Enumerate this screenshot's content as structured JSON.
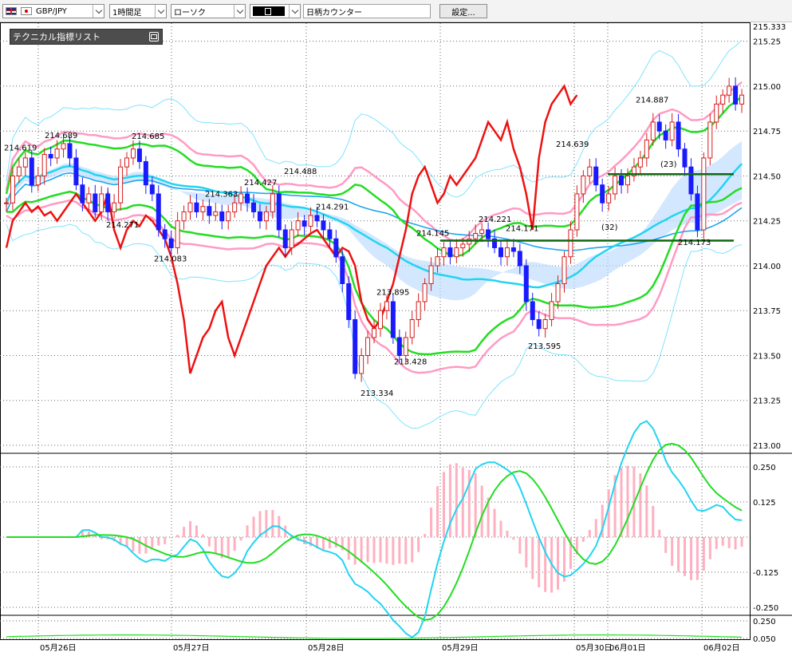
{
  "toolbar": {
    "symbol": "GBP/JPY",
    "timeframe": "1時間足",
    "chart_style": "ローソク",
    "color_value": "",
    "counter_label": "日柄カウンター",
    "settings_label": "設定..."
  },
  "indicator_panel": {
    "title": "テクニカル指標リスト"
  },
  "colors": {
    "candle_up": "#d61c1c",
    "candle_down": "#1a1aff",
    "bb_outer": "#7fe3ff",
    "bb_inner": "#ff9ac4",
    "ma_green": "#22dd22",
    "ma_cyan": "#22d4f0",
    "ma_long": "#1fa6ee",
    "lag_red": "#ee1111",
    "cloud": "#bcdcff",
    "cloud_pink": "#ffc6d8",
    "macd_hist": "#ffb0c0",
    "hline": "#116611"
  },
  "chart_data": [
    {
      "type": "candlestick",
      "symbol": "GBP/JPY",
      "timeframe": "1時間足",
      "y_ticks": [
        "215.333",
        "215.25",
        "215.00",
        "214.75",
        "214.50",
        "214.25",
        "214.00",
        "213.75",
        "213.50",
        "213.25",
        "213.00"
      ],
      "ylim": [
        213.0,
        215.333
      ],
      "x_dates": [
        "05月26日",
        "05月27日",
        "05月28日",
        "05月29日",
        "05月30日",
        "06月01日",
        "06月02日"
      ],
      "price_annotations": [
        {
          "text": "214.619",
          "value": 214.619
        },
        {
          "text": "214.689",
          "value": 214.689
        },
        {
          "text": "214.685",
          "value": 214.685
        },
        {
          "text": "214.271",
          "value": 214.271
        },
        {
          "text": "214.083",
          "value": 214.083
        },
        {
          "text": "214.363",
          "value": 214.363
        },
        {
          "text": "214.427",
          "value": 214.427
        },
        {
          "text": "214.488",
          "value": 214.488
        },
        {
          "text": "214.291",
          "value": 214.291
        },
        {
          "text": "213.334",
          "value": 213.334
        },
        {
          "text": "213.895",
          "value": 213.895
        },
        {
          "text": "213.428",
          "value": 213.428
        },
        {
          "text": "214.145",
          "value": 214.145
        },
        {
          "text": "214.221",
          "value": 214.221
        },
        {
          "text": "214.171",
          "value": 214.171
        },
        {
          "text": "213.595",
          "value": 213.595
        },
        {
          "text": "214.639",
          "value": 214.639
        },
        {
          "text": "214.887",
          "value": 214.887
        },
        {
          "text": "214.173",
          "value": 214.173
        }
      ],
      "counter_labels": [
        "(23)",
        "(32)"
      ],
      "horizontal_lines": [
        {
          "value": 214.51
        },
        {
          "value": 214.14
        }
      ],
      "close_series": [
        214.35,
        214.5,
        214.55,
        214.6,
        214.45,
        214.5,
        214.62,
        214.6,
        214.65,
        214.68,
        214.6,
        214.45,
        214.35,
        214.4,
        214.3,
        214.4,
        214.3,
        214.35,
        214.55,
        214.6,
        214.65,
        214.58,
        214.45,
        214.4,
        214.2,
        214.15,
        214.1,
        214.25,
        214.3,
        214.35,
        214.3,
        214.33,
        214.28,
        214.3,
        214.25,
        214.3,
        214.35,
        214.4,
        214.35,
        214.3,
        214.25,
        214.3,
        214.4,
        214.2,
        214.1,
        214.2,
        214.25,
        214.22,
        214.28,
        214.25,
        214.2,
        214.15,
        214.05,
        213.9,
        213.7,
        213.4,
        213.5,
        213.6,
        213.65,
        213.75,
        213.8,
        213.6,
        213.5,
        213.6,
        213.7,
        213.8,
        213.9,
        214.0,
        214.05,
        214.1,
        214.05,
        214.1,
        214.12,
        214.15,
        214.18,
        214.2,
        214.15,
        214.1,
        214.05,
        214.1,
        214.08,
        214.0,
        213.8,
        213.7,
        213.65,
        213.7,
        213.8,
        213.9,
        214.05,
        214.2,
        214.4,
        214.5,
        214.55,
        214.45,
        214.35,
        214.4,
        214.5,
        214.45,
        214.5,
        214.55,
        214.6,
        214.7,
        214.8,
        214.75,
        214.7,
        214.8,
        214.65,
        214.55,
        214.4,
        214.2,
        214.6,
        214.8,
        214.9,
        214.95,
        215.0,
        214.9,
        214.95
      ]
    },
    {
      "type": "line",
      "title": "MACD",
      "y_ticks": [
        "0.250",
        "0.125",
        "-0.125",
        "-0.250"
      ],
      "ylim": [
        -0.27,
        0.27
      ]
    },
    {
      "type": "line",
      "y_ticks": [
        "0.250",
        "0.050"
      ],
      "ylim": [
        0.05,
        0.25
      ]
    }
  ]
}
